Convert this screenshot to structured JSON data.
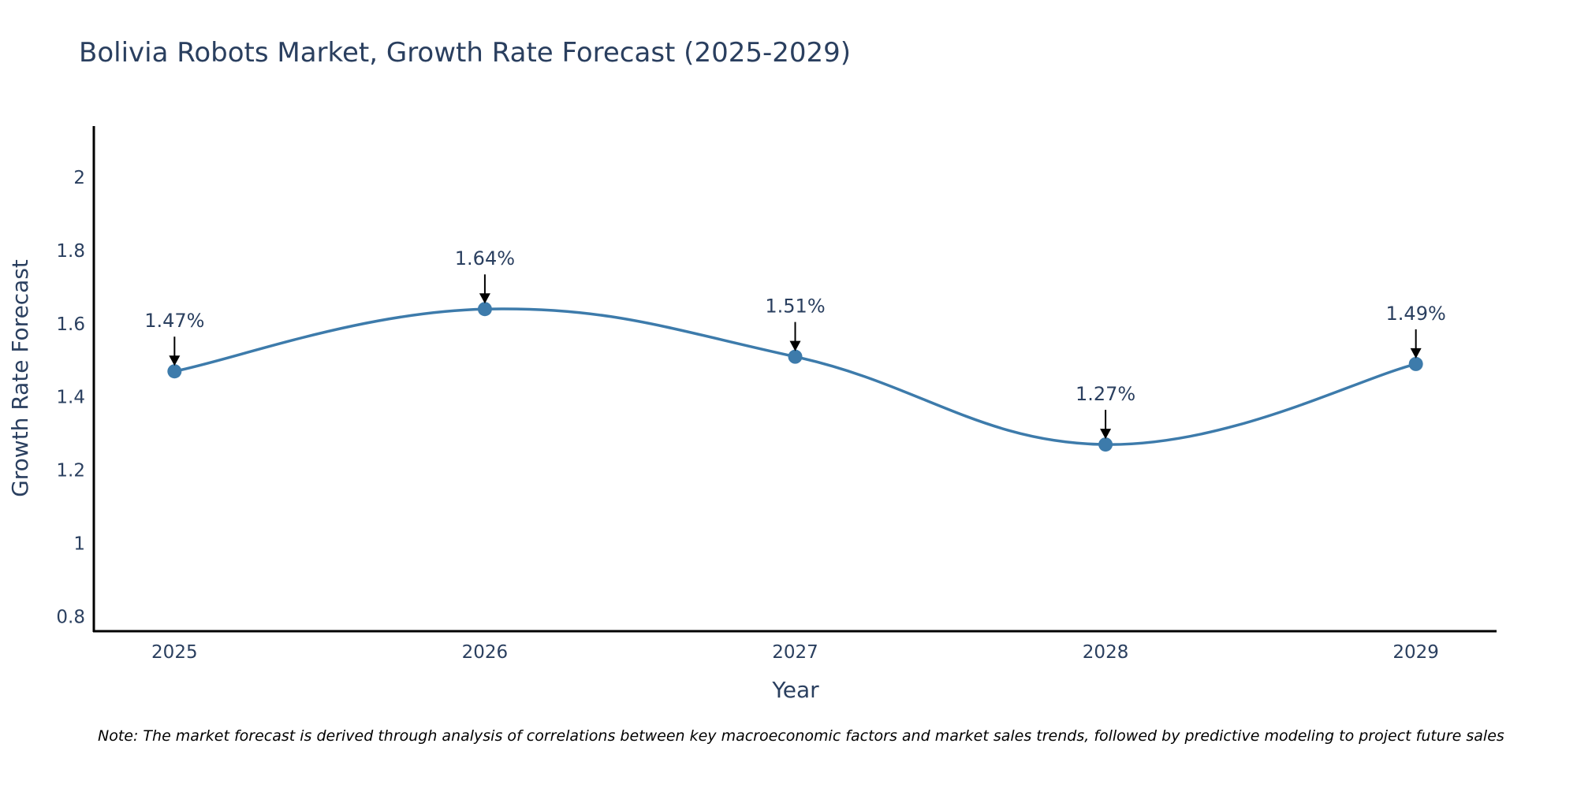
{
  "chart_data": {
    "type": "line",
    "title": "Bolivia Robots Market, Growth Rate Forecast (2025-2029)",
    "xlabel": "Year",
    "ylabel": "Growth Rate Forecast",
    "x": [
      "2025",
      "2026",
      "2027",
      "2028",
      "2029"
    ],
    "series": [
      {
        "name": "Growth Rate Forecast",
        "values": [
          1.47,
          1.64,
          1.51,
          1.27,
          1.49
        ],
        "color": "#3d7bab"
      }
    ],
    "annotations": [
      "1.47%",
      "1.64%",
      "1.51%",
      "1.27%",
      "1.49%"
    ],
    "yticks": [
      "0.8",
      "1",
      "1.2",
      "1.4",
      "1.6",
      "1.8",
      "2"
    ],
    "ytick_values": [
      0.8,
      1.0,
      1.2,
      1.4,
      1.6,
      1.8,
      2.0
    ],
    "ylim": [
      0.76,
      2.14
    ],
    "xlim": [
      2024.74,
      2029.26
    ],
    "grid": false,
    "line_shape": "spline",
    "note": "Note: The market forecast is derived through analysis of correlations between key macroeconomic factors and market sales trends, followed by predictive modeling to project future sales"
  }
}
